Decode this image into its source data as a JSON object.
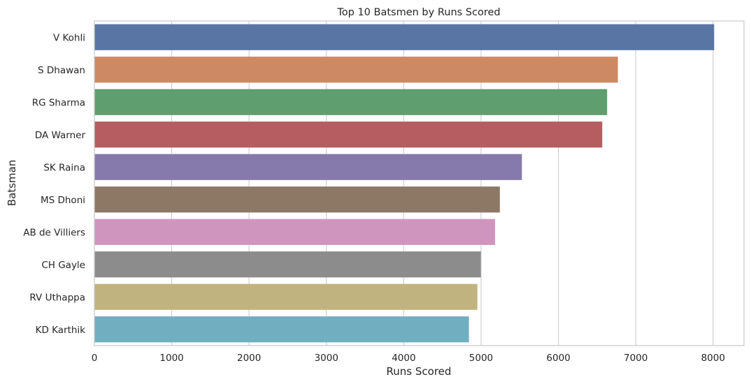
{
  "chart_data": {
    "type": "bar",
    "orientation": "horizontal",
    "title": "Top 10 Batsmen by Runs Scored",
    "xlabel": "Runs Scored",
    "ylabel": "Batsman",
    "xlim": [
      0,
      8400
    ],
    "x_ticks": [
      "0",
      "1000",
      "2000",
      "3000",
      "4000",
      "5000",
      "6000",
      "7000",
      "8000"
    ],
    "grid": "vertical",
    "categories": [
      "V Kohli",
      "S Dhawan",
      "RG Sharma",
      "DA Warner",
      "SK Raina",
      "MS Dhoni",
      "AB de Villiers",
      "CH Gayle",
      "RV Uthappa",
      "KD Karthik"
    ],
    "values": [
      8014,
      6769,
      6630,
      6567,
      5528,
      5243,
      5181,
      4997,
      4952,
      4843
    ],
    "colors": [
      "#5875a4",
      "#cc8963",
      "#5f9e6e",
      "#b55d60",
      "#857aab",
      "#8d7866",
      "#d095bf",
      "#8c8c8c",
      "#c1b37f",
      "#71aec0"
    ]
  }
}
